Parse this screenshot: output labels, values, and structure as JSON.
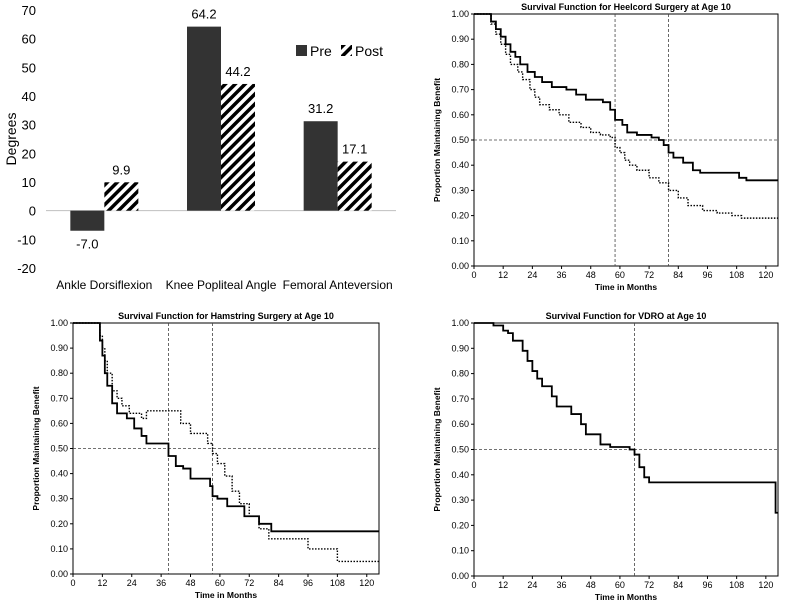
{
  "chart_data": [
    {
      "type": "bar",
      "title": "",
      "ylabel": "Degrees",
      "xlabel": "",
      "ylim": [
        -20,
        70
      ],
      "yticks": [
        -20,
        -10,
        0,
        10,
        20,
        30,
        40,
        50,
        60,
        70
      ],
      "categories": [
        "Ankle Dorsiflexion",
        "Knee Popliteal Angle",
        "Femoral Anteversion"
      ],
      "series": [
        {
          "name": "Pre",
          "values": [
            -7.0,
            64.2,
            31.2
          ],
          "value_labels": [
            "-7.0",
            "64.2",
            "31.2"
          ],
          "fill": "solid",
          "color": "#333333"
        },
        {
          "name": "Post",
          "values": [
            9.9,
            44.2,
            17.1
          ],
          "value_labels": [
            "9.9",
            "44.2",
            "17.1"
          ],
          "fill": "hatched",
          "color": "#000000"
        }
      ],
      "legend": "top-right",
      "grid": false
    },
    {
      "type": "line",
      "title": "Survival Function for Heelcord Surgery at Age 10",
      "xlabel": "Time in Months",
      "ylabel": "Proportion Maintaining Benefit",
      "xlim": [
        0,
        125
      ],
      "ylim": [
        0,
        1
      ],
      "xticks": [
        0,
        12,
        24,
        36,
        48,
        60,
        72,
        84,
        96,
        108,
        120
      ],
      "yticks": [
        "0.00",
        "0.10",
        "0.20",
        "0.30",
        "0.40",
        "0.50",
        "0.60",
        "0.70",
        "0.80",
        "0.90",
        "1.00"
      ],
      "reference_lines": {
        "horizontal": [
          0.5
        ],
        "vertical": [
          58,
          80
        ]
      },
      "series": [
        {
          "style": "solid",
          "points": [
            [
              0,
              1
            ],
            [
              5,
              1
            ],
            [
              7,
              0.97
            ],
            [
              9,
              0.94
            ],
            [
              11,
              0.91
            ],
            [
              13,
              0.88
            ],
            [
              15,
              0.85
            ],
            [
              17,
              0.83
            ],
            [
              19,
              0.8
            ],
            [
              22,
              0.77
            ],
            [
              25,
              0.75
            ],
            [
              28,
              0.73
            ],
            [
              32,
              0.71
            ],
            [
              38,
              0.7
            ],
            [
              42,
              0.68
            ],
            [
              46,
              0.66
            ],
            [
              53,
              0.65
            ],
            [
              56,
              0.62
            ],
            [
              58,
              0.58
            ],
            [
              61,
              0.56
            ],
            [
              63,
              0.53
            ],
            [
              67,
              0.52
            ],
            [
              73,
              0.51
            ],
            [
              76,
              0.5
            ],
            [
              78,
              0.48
            ],
            [
              80,
              0.45
            ],
            [
              82,
              0.43
            ],
            [
              86,
              0.41
            ],
            [
              90,
              0.38
            ],
            [
              93,
              0.37
            ],
            [
              97,
              0.37
            ],
            [
              109,
              0.35
            ],
            [
              112,
              0.34
            ],
            [
              125,
              0.34
            ]
          ]
        },
        {
          "style": "dotted",
          "points": [
            [
              0,
              1
            ],
            [
              5,
              1
            ],
            [
              7,
              0.96
            ],
            [
              9,
              0.92
            ],
            [
              11,
              0.88
            ],
            [
              13,
              0.84
            ],
            [
              15,
              0.8
            ],
            [
              18,
              0.77
            ],
            [
              20,
              0.74
            ],
            [
              23,
              0.7
            ],
            [
              25,
              0.67
            ],
            [
              27,
              0.64
            ],
            [
              31,
              0.62
            ],
            [
              35,
              0.6
            ],
            [
              39,
              0.57
            ],
            [
              44,
              0.55
            ],
            [
              48,
              0.53
            ],
            [
              52,
              0.52
            ],
            [
              56,
              0.51
            ],
            [
              58,
              0.47
            ],
            [
              60,
              0.45
            ],
            [
              62,
              0.42
            ],
            [
              64,
              0.4
            ],
            [
              67,
              0.38
            ],
            [
              72,
              0.35
            ],
            [
              76,
              0.33
            ],
            [
              80,
              0.3
            ],
            [
              84,
              0.27
            ],
            [
              88,
              0.24
            ],
            [
              94,
              0.22
            ],
            [
              100,
              0.21
            ],
            [
              106,
              0.2
            ],
            [
              110,
              0.19
            ],
            [
              120,
              0.19
            ],
            [
              125,
              0.19
            ]
          ]
        }
      ]
    },
    {
      "type": "line",
      "title": "Survival Function for Hamstring Surgery at Age 10",
      "xlabel": "Time in Months",
      "ylabel": "Proportion Maintaining Benefit",
      "xlim": [
        0,
        125
      ],
      "ylim": [
        0,
        1
      ],
      "xticks": [
        0,
        12,
        24,
        36,
        48,
        60,
        72,
        84,
        96,
        108,
        120
      ],
      "yticks": [
        "0.00",
        "0.10",
        "0.20",
        "0.30",
        "0.40",
        "0.50",
        "0.60",
        "0.70",
        "0.80",
        "0.90",
        "1.00"
      ],
      "reference_lines": {
        "horizontal": [
          0.5
        ],
        "vertical": [
          39,
          57
        ]
      },
      "series": [
        {
          "style": "solid",
          "points": [
            [
              0,
              1
            ],
            [
              10,
              1
            ],
            [
              11,
              0.93
            ],
            [
              12,
              0.87
            ],
            [
              13,
              0.8
            ],
            [
              14,
              0.75
            ],
            [
              16,
              0.68
            ],
            [
              18,
              0.64
            ],
            [
              22,
              0.62
            ],
            [
              25,
              0.58
            ],
            [
              28,
              0.55
            ],
            [
              30,
              0.52
            ],
            [
              39,
              0.47
            ],
            [
              42,
              0.43
            ],
            [
              45,
              0.42
            ],
            [
              48,
              0.38
            ],
            [
              53,
              0.38
            ],
            [
              56,
              0.35
            ],
            [
              57,
              0.31
            ],
            [
              59,
              0.3
            ],
            [
              63,
              0.27
            ],
            [
              70,
              0.23
            ],
            [
              76,
              0.2
            ],
            [
              81,
              0.17
            ],
            [
              125,
              0.17
            ]
          ]
        },
        {
          "style": "dotted",
          "points": [
            [
              0,
              1
            ],
            [
              10,
              1
            ],
            [
              11,
              0.95
            ],
            [
              12,
              0.9
            ],
            [
              13,
              0.85
            ],
            [
              14,
              0.8
            ],
            [
              16,
              0.73
            ],
            [
              18,
              0.7
            ],
            [
              20,
              0.67
            ],
            [
              23,
              0.64
            ],
            [
              28,
              0.62
            ],
            [
              30,
              0.65
            ],
            [
              40,
              0.65
            ],
            [
              44,
              0.6
            ],
            [
              48,
              0.56
            ],
            [
              55,
              0.52
            ],
            [
              57,
              0.48
            ],
            [
              59,
              0.44
            ],
            [
              62,
              0.39
            ],
            [
              65,
              0.33
            ],
            [
              68,
              0.28
            ],
            [
              72,
              0.23
            ],
            [
              76,
              0.18
            ],
            [
              80,
              0.14
            ],
            [
              86,
              0.14
            ],
            [
              96,
              0.1
            ],
            [
              108,
              0.05
            ],
            [
              125,
              0.05
            ]
          ]
        }
      ]
    },
    {
      "type": "line",
      "title": "Survival Function for VDRO at Age 10",
      "xlabel": "Time in Months",
      "ylabel": "Proportion Maintaining Benefit",
      "xlim": [
        0,
        125
      ],
      "ylim": [
        0,
        1
      ],
      "xticks": [
        0,
        12,
        24,
        36,
        48,
        60,
        72,
        84,
        96,
        108,
        120
      ],
      "yticks": [
        "0.00",
        "0.10",
        "0.20",
        "0.30",
        "0.40",
        "0.50",
        "0.60",
        "0.70",
        "0.80",
        "0.90",
        "1.00"
      ],
      "reference_lines": {
        "horizontal": [
          0.5
        ],
        "vertical": [
          66
        ]
      },
      "series": [
        {
          "style": "solid",
          "points": [
            [
              0,
              1
            ],
            [
              6,
              1
            ],
            [
              8,
              0.99
            ],
            [
              12,
              0.97
            ],
            [
              14,
              0.96
            ],
            [
              16,
              0.93
            ],
            [
              20,
              0.89
            ],
            [
              22,
              0.85
            ],
            [
              24,
              0.81
            ],
            [
              26,
              0.78
            ],
            [
              28,
              0.75
            ],
            [
              32,
              0.71
            ],
            [
              34,
              0.67
            ],
            [
              40,
              0.64
            ],
            [
              44,
              0.6
            ],
            [
              46,
              0.56
            ],
            [
              52,
              0.52
            ],
            [
              56,
              0.51
            ],
            [
              64,
              0.5
            ],
            [
              66,
              0.48
            ],
            [
              68,
              0.43
            ],
            [
              70,
              0.39
            ],
            [
              72,
              0.37
            ],
            [
              96,
              0.37
            ],
            [
              123,
              0.37
            ],
            [
              124,
              0.25
            ],
            [
              125,
              0.25
            ]
          ]
        }
      ]
    }
  ]
}
